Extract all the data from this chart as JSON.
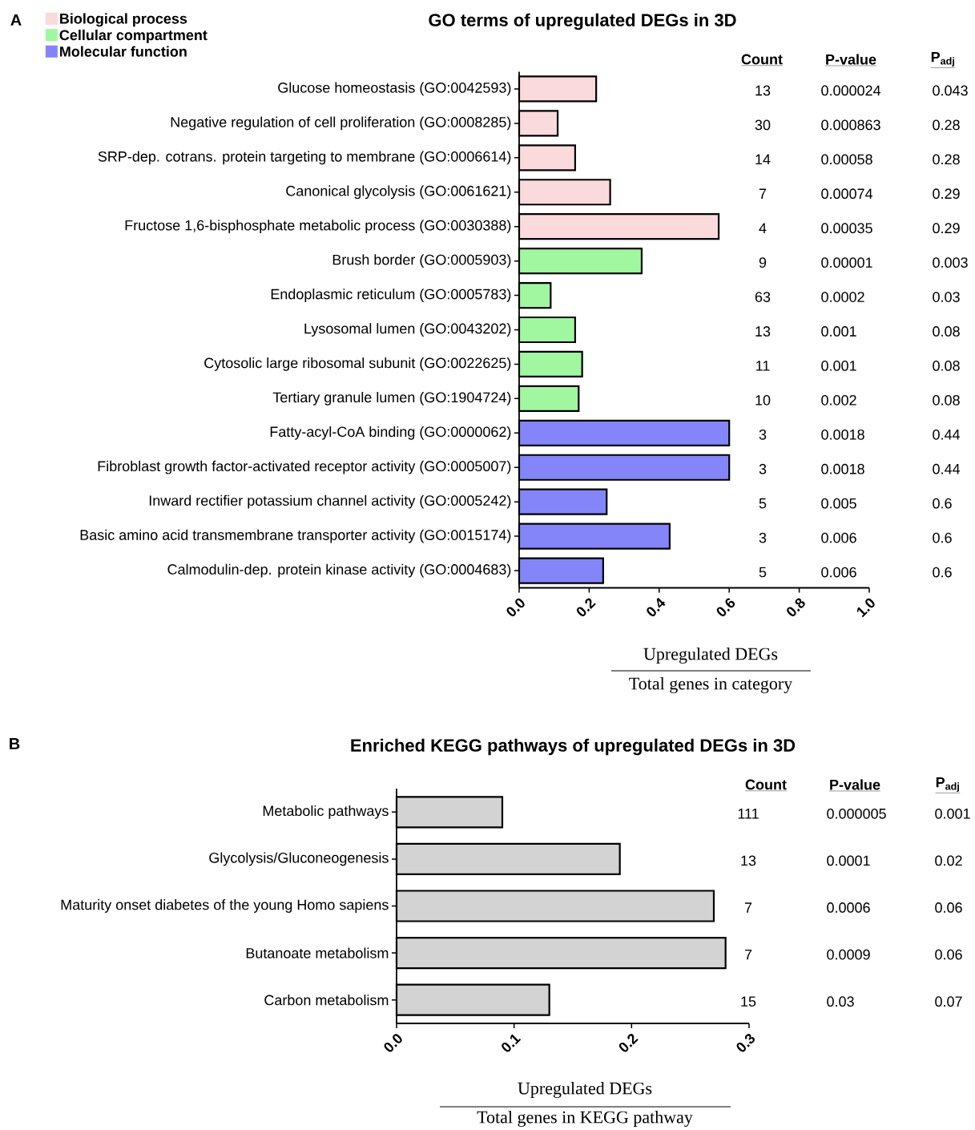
{
  "chart_data": [
    {
      "type": "bar",
      "orientation": "horizontal",
      "title": "GO terms of upregulated  DEGs in 3D",
      "xlabel": "Upregulated DEGs",
      "legend": "top left",
      "categories": [
        "Glucose homeostasis (GO:0042593)",
        "Negative regulation of cell proliferation (GO:0008285)",
        "SRP-dep. cotrans. protein targeting to membrane (GO:0006614)",
        "Canonical glycolysis (GO:0061621)",
        "Fructose 1,6-bisphosphate metabolic process (GO:0030388)",
        "Brush border (GO:0005903)",
        "Endoplasmic reticulum (GO:0005783)",
        "Lysosomal lumen (GO:0043202)",
        "Cytosolic large ribosomal subunit (GO:0022625)",
        "Tertiary granule lumen (GO:1904724)",
        "Fatty-acyl-CoA binding (GO:0000062)",
        "Fibroblast growth factor-activated receptor activity (GO:0005007)",
        "Inward rectifier potassium channel activity (GO:0005242)",
        "Basic amino acid transmembrane transporter activity (GO:0015174)",
        "Calmodulin-dep. protein kinase activity (GO:0004683)"
      ],
      "series": [
        {
          "name": "Biological process",
          "color": "#fadadd",
          "values": [
            0.22,
            0.11,
            0.16,
            0.26,
            0.57,
            null,
            null,
            null,
            null,
            null,
            null,
            null,
            null,
            null,
            null
          ]
        },
        {
          "name": "Cellular compartment",
          "color": "#a0f7a0",
          "values": [
            null,
            null,
            null,
            null,
            null,
            0.35,
            0.09,
            0.16,
            0.18,
            0.17,
            null,
            null,
            null,
            null,
            null
          ]
        },
        {
          "name": "Molecular function",
          "color": "#8585fa",
          "values": [
            null,
            null,
            null,
            null,
            null,
            null,
            null,
            null,
            null,
            null,
            0.6,
            0.6,
            0.25,
            0.43,
            0.24
          ]
        }
      ],
      "xlim": [
        0,
        1
      ],
      "xticks": [
        {
          "value": 0,
          "label": "0.0"
        },
        {
          "value": 0.2,
          "label": "0.2"
        },
        {
          "value": 0.4,
          "label": "0.4"
        },
        {
          "value": 0.6,
          "label": "0.6"
        },
        {
          "value": 0.8,
          "label": "0.8"
        },
        {
          "value": 1,
          "label": "1.0"
        }
      ],
      "annotations": [
        "A",
        "Total genes in category",
        "Count",
        "P-value",
        "P$_{adj}$",
        "13",
        "0.000024",
        "0.043",
        "30",
        "0.000863",
        "0.28",
        "14",
        "0.00058",
        "0.28",
        "7",
        "0.00074",
        "0.29",
        "4",
        "0.00035",
        "0.29",
        "9",
        "0.00001",
        "0.003",
        "63",
        "0.0002",
        "0.03",
        "13",
        "0.001",
        "0.08",
        "11",
        "0.001",
        "0.08",
        "10",
        "0.002",
        "0.08",
        "3",
        "0.0018",
        "0.44",
        "3",
        "0.0018",
        "0.44",
        "5",
        "0.005",
        "0.6",
        "3",
        "0.006",
        "0.6",
        "5",
        "0.006",
        "0.6"
      ]
    },
    {
      "type": "bar",
      "orientation": "horizontal",
      "title": "Enriched  KEGG pathways of upregulated DEGs in 3D",
      "xlabel": "Upregulated DEGs",
      "categories": [
        "Metabolic pathways",
        "Glycolysis/Gluconeogenesis",
        "Maturity onset diabetes of the young Homo sapiens",
        "Butanoate metabolism",
        "Carbon metabolism"
      ],
      "values": [
        0.09,
        0.19,
        0.27,
        0.28,
        0.13
      ],
      "color": "#d3d3d3",
      "xlim": [
        0,
        0.3
      ],
      "xticks": [
        {
          "value": 0,
          "label": "0.0"
        },
        {
          "value": 0.1,
          "label": "0.1"
        },
        {
          "value": 0.2,
          "label": "0.2"
        },
        {
          "value": 0.3,
          "label": "0.3"
        }
      ],
      "annotations": [
        "B",
        "Total genes in KEGG pathway",
        "Count",
        "P-value",
        "P$_{adj}$",
        "111",
        "0.000005",
        "0.001",
        "13",
        "0.0001",
        "0.02",
        "7",
        "0.0006",
        "0.06",
        "7",
        "0.0009",
        "0.06",
        "15",
        "0.03",
        "0.07"
      ]
    }
  ]
}
